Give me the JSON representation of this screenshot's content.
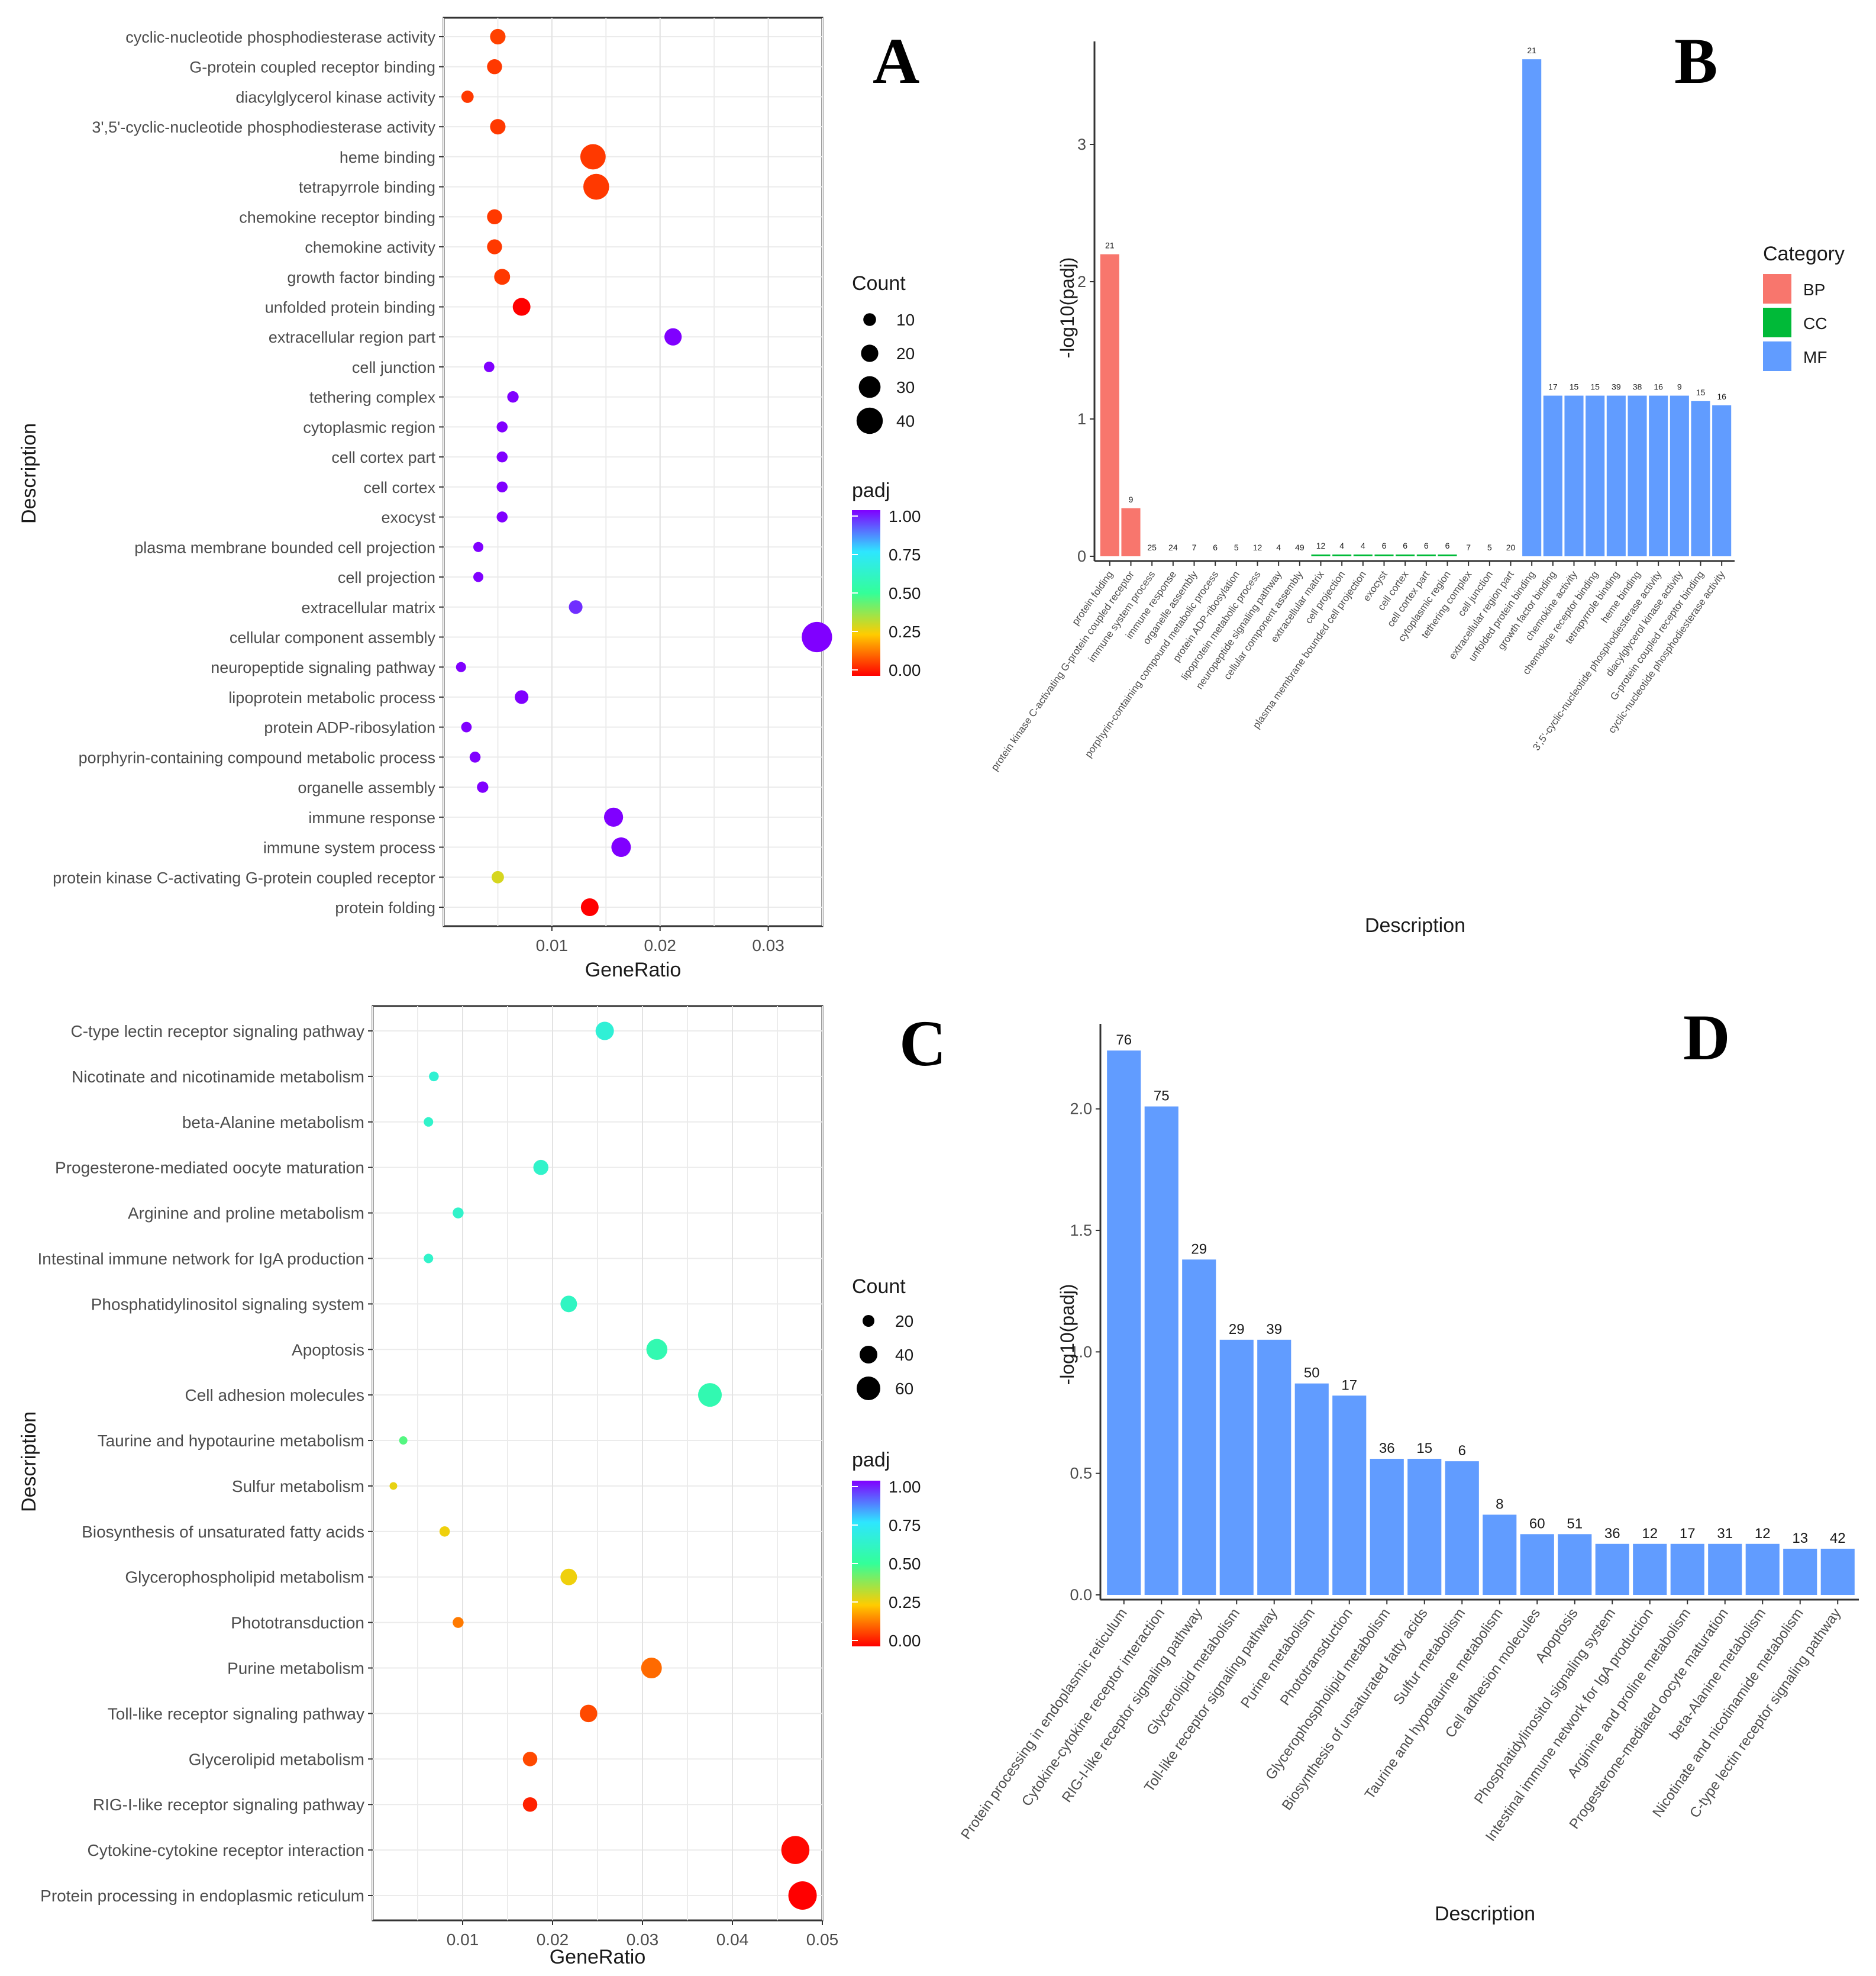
{
  "chart_data": [
    {
      "panel": "A",
      "type": "scatter",
      "xlabel": "GeneRatio",
      "ylabel": "Description",
      "xlim": [
        0.0,
        0.035
      ],
      "xticks": [
        "0.01",
        "0.02",
        "0.03"
      ],
      "xtick_values": [
        0.01,
        0.02,
        0.03
      ],
      "size_legend": {
        "title": "Count",
        "values": [
          10,
          20,
          30,
          40
        ]
      },
      "color_legend": {
        "title": "padj",
        "ticks": [
          "1.00",
          "0.75",
          "0.50",
          "0.25",
          "0.00"
        ]
      },
      "points": [
        {
          "term": "cyclic-nucleotide phosphodiesterase activity",
          "x": 0.005,
          "count": 16,
          "padj": 0.08
        },
        {
          "term": "G-protein coupled receptor binding",
          "x": 0.0047,
          "count": 15,
          "padj": 0.07
        },
        {
          "term": "diacylglycerol kinase activity",
          "x": 0.0022,
          "count": 9,
          "padj": 0.07
        },
        {
          "term": "3',5'-cyclic-nucleotide phosphodiesterase activity",
          "x": 0.005,
          "count": 16,
          "padj": 0.07
        },
        {
          "term": "heme binding",
          "x": 0.0138,
          "count": 38,
          "padj": 0.07
        },
        {
          "term": "tetrapyrrole binding",
          "x": 0.0141,
          "count": 39,
          "padj": 0.07
        },
        {
          "term": "chemokine receptor binding",
          "x": 0.0047,
          "count": 15,
          "padj": 0.07
        },
        {
          "term": "chemokine activity",
          "x": 0.0047,
          "count": 15,
          "padj": 0.07
        },
        {
          "term": "growth factor binding",
          "x": 0.0054,
          "count": 17,
          "padj": 0.07
        },
        {
          "term": "unfolded protein binding",
          "x": 0.0072,
          "count": 21,
          "padj": 0.0
        },
        {
          "term": "extracellular region part",
          "x": 0.0212,
          "count": 20,
          "padj": 1.0
        },
        {
          "term": "cell junction",
          "x": 0.0042,
          "count": 5,
          "padj": 1.0
        },
        {
          "term": "tethering complex",
          "x": 0.0064,
          "count": 7,
          "padj": 1.0
        },
        {
          "term": "cytoplasmic region",
          "x": 0.0054,
          "count": 6,
          "padj": 1.0
        },
        {
          "term": "cell cortex part",
          "x": 0.0054,
          "count": 6,
          "padj": 1.0
        },
        {
          "term": "cell cortex",
          "x": 0.0054,
          "count": 6,
          "padj": 1.0
        },
        {
          "term": "exocyst",
          "x": 0.0054,
          "count": 6,
          "padj": 1.0
        },
        {
          "term": "plasma membrane bounded cell projection",
          "x": 0.0032,
          "count": 4,
          "padj": 1.0
        },
        {
          "term": "cell projection",
          "x": 0.0032,
          "count": 4,
          "padj": 1.0
        },
        {
          "term": "extracellular matrix",
          "x": 0.0122,
          "count": 12,
          "padj": 0.95
        },
        {
          "term": "cellular component assembly",
          "x": 0.0345,
          "count": 49,
          "padj": 1.0
        },
        {
          "term": "neuropeptide signaling pathway",
          "x": 0.0016,
          "count": 4,
          "padj": 1.0
        },
        {
          "term": "lipoprotein metabolic process",
          "x": 0.0072,
          "count": 12,
          "padj": 1.0
        },
        {
          "term": "protein ADP-ribosylation",
          "x": 0.0021,
          "count": 5,
          "padj": 1.0
        },
        {
          "term": "porphyrin-containing compound metabolic process",
          "x": 0.0029,
          "count": 6,
          "padj": 1.0
        },
        {
          "term": "organelle assembly",
          "x": 0.0036,
          "count": 7,
          "padj": 1.0
        },
        {
          "term": "immune response",
          "x": 0.0157,
          "count": 24,
          "padj": 1.0
        },
        {
          "term": "immune system process",
          "x": 0.0164,
          "count": 25,
          "padj": 1.0
        },
        {
          "term": "protein kinase C-activating G-protein coupled receptor",
          "x": 0.005,
          "count": 9,
          "padj": 0.3
        },
        {
          "term": "protein folding",
          "x": 0.0135,
          "count": 21,
          "padj": 0.0
        }
      ]
    },
    {
      "panel": "B",
      "type": "bar",
      "xlabel": "Description",
      "ylabel": "-log10(padj)",
      "ylim": [
        0,
        3.75
      ],
      "yticks": [
        "0",
        "1",
        "2",
        "3"
      ],
      "ytick_values": [
        0,
        1,
        2,
        3
      ],
      "legend": {
        "title": "Category",
        "entries": [
          {
            "label": "BP",
            "color": "#F8766D"
          },
          {
            "label": "CC",
            "color": "#00BA38"
          },
          {
            "label": "MF",
            "color": "#619CFF"
          }
        ]
      },
      "bars": [
        {
          "term": "protein folding",
          "value": 2.2,
          "count": "21",
          "category": "BP"
        },
        {
          "term": "protein kinase C-activating G-protein coupled receptor",
          "value": 0.35,
          "count": "9",
          "category": "BP"
        },
        {
          "term": "immune system process",
          "value": 0.0,
          "count": "25",
          "category": "BP"
        },
        {
          "term": "immune response",
          "value": 0.0,
          "count": "24",
          "category": "BP"
        },
        {
          "term": "organelle assembly",
          "value": 0.0,
          "count": "7",
          "category": "BP"
        },
        {
          "term": "porphyrin-containing compound metabolic process",
          "value": 0.0,
          "count": "6",
          "category": "BP"
        },
        {
          "term": "protein ADP-ribosylation",
          "value": 0.0,
          "count": "5",
          "category": "BP"
        },
        {
          "term": "lipoprotein metabolic process",
          "value": 0.0,
          "count": "12",
          "category": "BP"
        },
        {
          "term": "neuropeptide signaling pathway",
          "value": 0.0,
          "count": "4",
          "category": "BP"
        },
        {
          "term": "cellular component assembly",
          "value": 0.0,
          "count": "49",
          "category": "BP"
        },
        {
          "term": "extracellular matrix",
          "value": 0.01,
          "count": "12",
          "category": "CC"
        },
        {
          "term": "cell projection",
          "value": 0.01,
          "count": "4",
          "category": "CC"
        },
        {
          "term": "plasma membrane bounded cell projection",
          "value": 0.01,
          "count": "4",
          "category": "CC"
        },
        {
          "term": "exocyst",
          "value": 0.01,
          "count": "6",
          "category": "CC"
        },
        {
          "term": "cell cortex",
          "value": 0.01,
          "count": "6",
          "category": "CC"
        },
        {
          "term": "cell cortex part",
          "value": 0.01,
          "count": "6",
          "category": "CC"
        },
        {
          "term": "cytoplasmic region",
          "value": 0.01,
          "count": "6",
          "category": "CC"
        },
        {
          "term": "tethering complex",
          "value": 0.0,
          "count": "7",
          "category": "CC"
        },
        {
          "term": "cell junction",
          "value": 0.0,
          "count": "5",
          "category": "CC"
        },
        {
          "term": "extracellular region part",
          "value": 0.0,
          "count": "20",
          "category": "CC"
        },
        {
          "term": "unfolded protein binding",
          "value": 3.62,
          "count": "21",
          "category": "MF"
        },
        {
          "term": "growth factor binding",
          "value": 1.17,
          "count": "17",
          "category": "MF"
        },
        {
          "term": "chemokine activity",
          "value": 1.17,
          "count": "15",
          "category": "MF"
        },
        {
          "term": "chemokine receptor binding",
          "value": 1.17,
          "count": "15",
          "category": "MF"
        },
        {
          "term": "tetrapyrrole binding",
          "value": 1.17,
          "count": "39",
          "category": "MF"
        },
        {
          "term": "heme binding",
          "value": 1.17,
          "count": "38",
          "category": "MF"
        },
        {
          "term": "3',5'-cyclic-nucleotide phosphodiesterase activity",
          "value": 1.17,
          "count": "16",
          "category": "MF"
        },
        {
          "term": "diacylglycerol kinase activity",
          "value": 1.17,
          "count": "9",
          "category": "MF"
        },
        {
          "term": "G-protein coupled receptor binding",
          "value": 1.13,
          "count": "15",
          "category": "MF"
        },
        {
          "term": "cyclic-nucleotide phosphodiesterase activity",
          "value": 1.1,
          "count": "16",
          "category": "MF"
        }
      ]
    },
    {
      "panel": "C",
      "type": "scatter",
      "xlabel": "GeneRatio",
      "ylabel": "Description",
      "xlim": [
        0.0,
        0.05
      ],
      "xticks": [
        "0.01",
        "0.02",
        "0.03",
        "0.04",
        "0.05"
      ],
      "xtick_values": [
        0.01,
        0.02,
        0.03,
        0.04,
        0.05
      ],
      "size_legend": {
        "title": "Count",
        "values": [
          20,
          40,
          60
        ]
      },
      "color_legend": {
        "title": "padj",
        "ticks": [
          "1.00",
          "0.75",
          "0.50",
          "0.25",
          "0.00"
        ]
      },
      "points": [
        {
          "term": "C-type lectin receptor signaling pathway",
          "x": 0.0258,
          "count": 42,
          "padj": 0.65
        },
        {
          "term": "Nicotinate and nicotinamide metabolism",
          "x": 0.0068,
          "count": 13,
          "padj": 0.64
        },
        {
          "term": "beta-Alanine metabolism",
          "x": 0.0062,
          "count": 12,
          "padj": 0.62
        },
        {
          "term": "Progesterone-mediated oocyte maturation",
          "x": 0.0187,
          "count": 31,
          "padj": 0.62
        },
        {
          "term": "Arginine and proline metabolism",
          "x": 0.0095,
          "count": 17,
          "padj": 0.62
        },
        {
          "term": "Intestinal immune network for IgA production",
          "x": 0.0062,
          "count": 12,
          "padj": 0.62
        },
        {
          "term": "Phosphatidylinositol signaling system",
          "x": 0.0218,
          "count": 36,
          "padj": 0.6
        },
        {
          "term": "Apoptosis",
          "x": 0.0316,
          "count": 51,
          "padj": 0.56
        },
        {
          "term": "Cell adhesion molecules",
          "x": 0.0375,
          "count": 60,
          "padj": 0.56
        },
        {
          "term": "Taurine and hypotaurine metabolism",
          "x": 0.0034,
          "count": 8,
          "padj": 0.46
        },
        {
          "term": "Sulfur metabolism",
          "x": 0.0023,
          "count": 6,
          "padj": 0.28
        },
        {
          "term": "Biosynthesis of unsaturated fatty acids",
          "x": 0.008,
          "count": 15,
          "padj": 0.27
        },
        {
          "term": "Glycerophospholipid metabolism",
          "x": 0.0218,
          "count": 36,
          "padj": 0.27
        },
        {
          "term": "Phototransduction",
          "x": 0.0095,
          "count": 17,
          "padj": 0.15
        },
        {
          "term": "Purine metabolism",
          "x": 0.031,
          "count": 50,
          "padj": 0.13
        },
        {
          "term": "Toll-like receptor signaling pathway",
          "x": 0.024,
          "count": 39,
          "padj": 0.09
        },
        {
          "term": "Glycerolipid metabolism",
          "x": 0.0175,
          "count": 29,
          "padj": 0.09
        },
        {
          "term": "RIG-I-like receptor signaling pathway",
          "x": 0.0175,
          "count": 29,
          "padj": 0.04
        },
        {
          "term": "Cytokine-cytokine receptor interaction",
          "x": 0.047,
          "count": 75,
          "padj": 0.01
        },
        {
          "term": "Protein processing in endoplasmic reticulum",
          "x": 0.0478,
          "count": 76,
          "padj": 0.0
        }
      ]
    },
    {
      "panel": "D",
      "type": "bar",
      "xlabel": "Description",
      "ylabel": "-log10(padj)",
      "ylim": [
        0,
        2.35
      ],
      "yticks": [
        "0.0",
        "0.5",
        "1.0",
        "1.5",
        "2.0"
      ],
      "ytick_values": [
        0,
        0.5,
        1.0,
        1.5,
        2.0
      ],
      "color": "#619CFF",
      "bars": [
        {
          "term": "Protein processing in endoplasmic reticulum",
          "value": 2.24,
          "count": "76"
        },
        {
          "term": "Cytokine-cytokine receptor interaction",
          "value": 2.01,
          "count": "75"
        },
        {
          "term": "RIG-I-like receptor signaling pathway",
          "value": 1.38,
          "count": "29"
        },
        {
          "term": "Glycerolipid metabolism",
          "value": 1.05,
          "count": "29"
        },
        {
          "term": "Toll-like receptor signaling pathway",
          "value": 1.05,
          "count": "39"
        },
        {
          "term": "Purine metabolism",
          "value": 0.87,
          "count": "50"
        },
        {
          "term": "Phototransduction",
          "value": 0.82,
          "count": "17"
        },
        {
          "term": "Glycerophospholipid metabolism",
          "value": 0.56,
          "count": "36"
        },
        {
          "term": "Biosynthesis of unsaturated fatty acids",
          "value": 0.56,
          "count": "15"
        },
        {
          "term": "Sulfur metabolism",
          "value": 0.55,
          "count": "6"
        },
        {
          "term": "Taurine and hypotaurine metabolism",
          "value": 0.33,
          "count": "8"
        },
        {
          "term": "Cell adhesion molecules",
          "value": 0.25,
          "count": "60"
        },
        {
          "term": "Apoptosis",
          "value": 0.25,
          "count": "51"
        },
        {
          "term": "Phosphatidylinositol signaling system",
          "value": 0.21,
          "count": "36"
        },
        {
          "term": "Intestinal immune network for IgA production",
          "value": 0.21,
          "count": "12"
        },
        {
          "term": "Arginine and proline metabolism",
          "value": 0.21,
          "count": "17"
        },
        {
          "term": "Progesterone-mediated oocyte maturation",
          "value": 0.21,
          "count": "31"
        },
        {
          "term": "beta-Alanine metabolism",
          "value": 0.21,
          "count": "12"
        },
        {
          "term": "Nicotinate and nicotinamide metabolism",
          "value": 0.19,
          "count": "13"
        },
        {
          "term": "C-type lectin receptor signaling pathway",
          "value": 0.19,
          "count": "42"
        }
      ]
    }
  ]
}
